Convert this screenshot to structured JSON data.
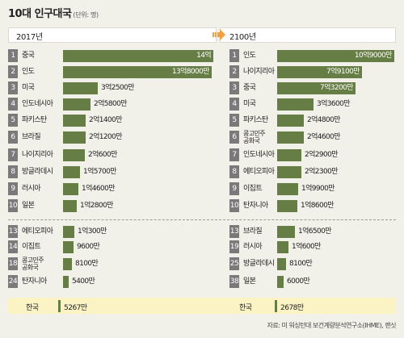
{
  "header": {
    "title": "10대 인구대국",
    "unit": "(단위: 명)"
  },
  "colors": {
    "bar": "#667d45",
    "rank_badge": "#7a7a7a",
    "korea_highlight": "#fbf3c4",
    "arrow": "#f0a040",
    "background": "#f1f0e9"
  },
  "source": "자료: 미 워싱턴대 보건계량분석연구소(IHME), 랜싯",
  "chart_data": [
    {
      "type": "bar",
      "title": "2017년",
      "unit": "명",
      "rows": [
        {
          "rank": "1",
          "name": "중국",
          "value": 1400000000,
          "label": "14억"
        },
        {
          "rank": "2",
          "name": "인도",
          "value": 1380000000,
          "label": "13억8000만"
        },
        {
          "rank": "3",
          "name": "미국",
          "value": 325000000,
          "label": "3억2500만"
        },
        {
          "rank": "4",
          "name": "인도네시아",
          "value": 258000000,
          "label": "2억5800만"
        },
        {
          "rank": "5",
          "name": "파키스탄",
          "value": 214000000,
          "label": "2억1400만"
        },
        {
          "rank": "6",
          "name": "브라질",
          "value": 212000000,
          "label": "2억1200만"
        },
        {
          "rank": "7",
          "name": "나이지리아",
          "value": 206000000,
          "label": "2억600만"
        },
        {
          "rank": "8",
          "name": "방글라데시",
          "value": 157000000,
          "label": "1억5700만"
        },
        {
          "rank": "9",
          "name": "러시아",
          "value": 146000000,
          "label": "1억4600만"
        },
        {
          "rank": "10",
          "name": "일본",
          "value": 128000000,
          "label": "1억2800만"
        }
      ],
      "extra_rows": [
        {
          "rank": "13",
          "name": "에티오피아",
          "value": 103000000,
          "label": "1억300만"
        },
        {
          "rank": "14",
          "name": "이집트",
          "value": 96000000,
          "label": "9600만"
        },
        {
          "rank": "18",
          "name": "콩고민주\n공화국",
          "value": 81000000,
          "label": "8100만"
        },
        {
          "rank": "24",
          "name": "탄자니아",
          "value": 54000000,
          "label": "5400만"
        }
      ],
      "korea": {
        "name": "한국",
        "value": 52670000,
        "label": "5267만"
      }
    },
    {
      "type": "bar",
      "title": "2100년",
      "unit": "명",
      "rows": [
        {
          "rank": "1",
          "name": "인도",
          "value": 1090000000,
          "label": "10억9000만"
        },
        {
          "rank": "2",
          "name": "나이지리아",
          "value": 791000000,
          "label": "7억9100만"
        },
        {
          "rank": "3",
          "name": "중국",
          "value": 732000000,
          "label": "7억3200만"
        },
        {
          "rank": "4",
          "name": "미국",
          "value": 336000000,
          "label": "3억3600만"
        },
        {
          "rank": "5",
          "name": "파키스탄",
          "value": 248000000,
          "label": "2억4800만"
        },
        {
          "rank": "6",
          "name": "콩고민주\n공화국",
          "value": 246000000,
          "label": "2억4600만"
        },
        {
          "rank": "7",
          "name": "인도네시아",
          "value": 229000000,
          "label": "2억2900만"
        },
        {
          "rank": "8",
          "name": "에티오피아",
          "value": 223000000,
          "label": "2억2300만"
        },
        {
          "rank": "9",
          "name": "이집트",
          "value": 199000000,
          "label": "1억9900만"
        },
        {
          "rank": "10",
          "name": "탄자니아",
          "value": 186000000,
          "label": "1억8600만"
        }
      ],
      "extra_rows": [
        {
          "rank": "13",
          "name": "브라질",
          "value": 165000000,
          "label": "1억6500만"
        },
        {
          "rank": "19",
          "name": "러시아",
          "value": 106000000,
          "label": "1억600만"
        },
        {
          "rank": "25",
          "name": "방글라데시",
          "value": 81000000,
          "label": "8100만"
        },
        {
          "rank": "38",
          "name": "일본",
          "value": 60000000,
          "label": "6000만"
        }
      ],
      "korea": {
        "name": "한국",
        "value": 26780000,
        "label": "2678만"
      }
    }
  ]
}
